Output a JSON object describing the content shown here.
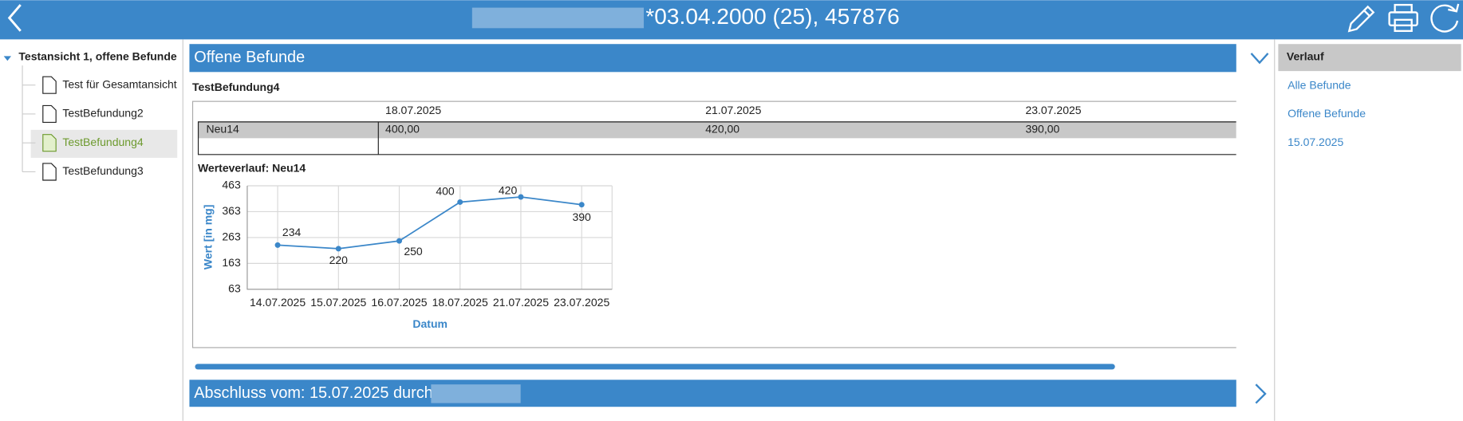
{
  "header": {
    "title": "*03.04.2000 (25), 457876"
  },
  "tree": {
    "root": "Testansicht 1, offene Befunde",
    "items": [
      "Test für Gesamtansicht",
      "TestBefundung2",
      "TestBefundung4",
      "TestBefundung3"
    ]
  },
  "section": {
    "title": "Offene Befunde",
    "subtitle": "TestBefundung4"
  },
  "table": {
    "columns": [
      "18.07.2025",
      "21.07.2025",
      "23.07.2025"
    ],
    "rows": [
      [
        "Neu14",
        "400,00",
        "420,00",
        "390,00"
      ]
    ]
  },
  "chart_data": {
    "type": "line",
    "title": "Werteverlauf: Neu14",
    "x_label": "Datum",
    "y_label": "Wert [in mg]",
    "categories": [
      "14.07.2025",
      "15.07.2025",
      "16.07.2025",
      "18.07.2025",
      "21.07.2025",
      "23.07.2025"
    ],
    "values": [
      234,
      220,
      250,
      400,
      420,
      390
    ],
    "color": "#3b87c9",
    "ylim": [
      63,
      463
    ],
    "yticks": [
      63,
      163,
      263,
      363,
      463
    ],
    "grid": true
  },
  "footer": {
    "title": "Abschluss vom: 15.07.2025 durch"
  },
  "sidebar": {
    "title": "Verlauf",
    "links": [
      "Alle Befunde",
      "Offene Befunde",
      "15.07.2025"
    ]
  }
}
